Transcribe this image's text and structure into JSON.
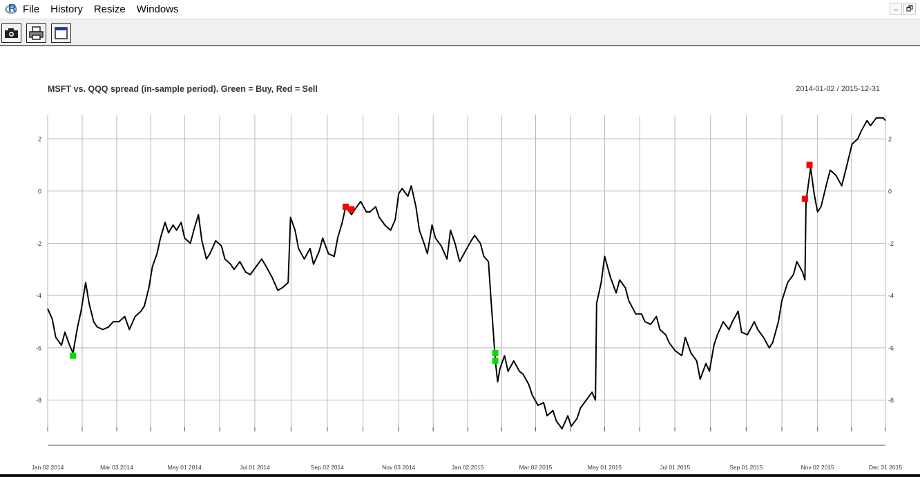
{
  "menubar": {
    "items": [
      "File",
      "History",
      "Resize",
      "Windows"
    ]
  },
  "window_controls": {
    "minimize": "–",
    "restore": "🗗"
  },
  "toolbar": {
    "buttons": [
      "camera-icon",
      "printer-icon",
      "window-icon"
    ]
  },
  "chart_data": {
    "type": "line",
    "title": "MSFT vs. QQQ spread (in-sample period). Green = Buy, Red = Sell",
    "date_range": "2014-01-02 / 2015-12-31",
    "xlabel": "",
    "ylabel": "",
    "x_ticks": [
      "Jan 02 2014",
      "Mar 03 2014",
      "May 01 2014",
      "Jul 01 2014",
      "Sep 02 2014",
      "Nov 03 2014",
      "Jan 02 2015",
      "Mar 02 2015",
      "May 01 2015",
      "Jul 01 2015",
      "Sep 01 2015",
      "Nov 02 2015",
      "Dec 31 2015"
    ],
    "y_ticks": [
      "2",
      "0",
      "-2",
      "-4",
      "-6",
      "-8"
    ],
    "ylim": [
      -9.2,
      2.9
    ],
    "grid": true,
    "series": [
      {
        "values": [
          [
            "2014-01-02",
            -4.5
          ],
          [
            "2014-01-06",
            -4.9
          ],
          [
            "2014-01-09",
            -5.6
          ],
          [
            "2014-01-14",
            -5.9
          ],
          [
            "2014-01-17",
            -5.4
          ],
          [
            "2014-01-21",
            -5.9
          ],
          [
            "2014-01-24",
            -6.2
          ],
          [
            "2014-01-28",
            -5.2
          ],
          [
            "2014-01-31",
            -4.6
          ],
          [
            "2014-02-04",
            -3.5
          ],
          [
            "2014-02-07",
            -4.3
          ],
          [
            "2014-02-11",
            -5.0
          ],
          [
            "2014-02-14",
            -5.2
          ],
          [
            "2014-02-19",
            -5.3
          ],
          [
            "2014-02-24",
            -5.2
          ],
          [
            "2014-02-28",
            -5.0
          ],
          [
            "2014-03-05",
            -5.0
          ],
          [
            "2014-03-10",
            -4.8
          ],
          [
            "2014-03-14",
            -5.3
          ],
          [
            "2014-03-19",
            -4.8
          ],
          [
            "2014-03-24",
            -4.6
          ],
          [
            "2014-03-27",
            -4.4
          ],
          [
            "2014-03-31",
            -3.7
          ],
          [
            "2014-04-03",
            -2.9
          ],
          [
            "2014-04-07",
            -2.4
          ],
          [
            "2014-04-10",
            -1.8
          ],
          [
            "2014-04-14",
            -1.2
          ],
          [
            "2014-04-17",
            -1.6
          ],
          [
            "2014-04-21",
            -1.3
          ],
          [
            "2014-04-24",
            -1.5
          ],
          [
            "2014-04-28",
            -1.2
          ],
          [
            "2014-05-01",
            -1.8
          ],
          [
            "2014-05-06",
            -2.0
          ],
          [
            "2014-05-09",
            -1.5
          ],
          [
            "2014-05-13",
            -0.9
          ],
          [
            "2014-05-16",
            -1.9
          ],
          [
            "2014-05-20",
            -2.6
          ],
          [
            "2014-05-23",
            -2.4
          ],
          [
            "2014-05-28",
            -1.9
          ],
          [
            "2014-06-02",
            -2.1
          ],
          [
            "2014-06-05",
            -2.6
          ],
          [
            "2014-06-10",
            -2.8
          ],
          [
            "2014-06-13",
            -3.0
          ],
          [
            "2014-06-18",
            -2.7
          ],
          [
            "2014-06-23",
            -3.1
          ],
          [
            "2014-06-27",
            -3.2
          ],
          [
            "2014-07-02",
            -2.9
          ],
          [
            "2014-07-07",
            -2.6
          ],
          [
            "2014-07-11",
            -2.9
          ],
          [
            "2014-07-16",
            -3.3
          ],
          [
            "2014-07-21",
            -3.8
          ],
          [
            "2014-07-25",
            -3.7
          ],
          [
            "2014-07-30",
            -3.5
          ],
          [
            "2014-08-01",
            -1.0
          ],
          [
            "2014-08-05",
            -1.5
          ],
          [
            "2014-08-08",
            -2.2
          ],
          [
            "2014-08-13",
            -2.6
          ],
          [
            "2014-08-18",
            -2.2
          ],
          [
            "2014-08-21",
            -2.8
          ],
          [
            "2014-08-26",
            -2.3
          ],
          [
            "2014-08-29",
            -1.8
          ],
          [
            "2014-09-03",
            -2.4
          ],
          [
            "2014-09-08",
            -2.5
          ],
          [
            "2014-09-11",
            -1.8
          ],
          [
            "2014-09-15",
            -1.2
          ],
          [
            "2014-09-18",
            -0.6
          ],
          [
            "2014-09-23",
            -0.9
          ],
          [
            "2014-09-26",
            -0.7
          ],
          [
            "2014-10-01",
            -0.4
          ],
          [
            "2014-10-06",
            -0.8
          ],
          [
            "2014-10-09",
            -0.8
          ],
          [
            "2014-10-14",
            -0.6
          ],
          [
            "2014-10-17",
            -1.0
          ],
          [
            "2014-10-22",
            -1.3
          ],
          [
            "2014-10-27",
            -1.5
          ],
          [
            "2014-10-31",
            -1.1
          ],
          [
            "2014-11-03",
            -0.1
          ],
          [
            "2014-11-06",
            0.1
          ],
          [
            "2014-11-11",
            -0.2
          ],
          [
            "2014-11-14",
            0.2
          ],
          [
            "2014-11-18",
            -0.6
          ],
          [
            "2014-11-21",
            -1.5
          ],
          [
            "2014-11-25",
            -2.0
          ],
          [
            "2014-11-28",
            -2.4
          ],
          [
            "2014-12-02",
            -1.3
          ],
          [
            "2014-12-05",
            -1.8
          ],
          [
            "2014-12-10",
            -2.1
          ],
          [
            "2014-12-15",
            -2.6
          ],
          [
            "2014-12-18",
            -1.5
          ],
          [
            "2014-12-22",
            -2.0
          ],
          [
            "2014-12-26",
            -2.7
          ],
          [
            "2014-12-31",
            -2.3
          ],
          [
            "2015-01-05",
            -1.9
          ],
          [
            "2015-01-08",
            -1.7
          ],
          [
            "2015-01-13",
            -2.0
          ],
          [
            "2015-01-16",
            -2.5
          ],
          [
            "2015-01-20",
            -2.7
          ],
          [
            "2015-01-22",
            -4.0
          ],
          [
            "2015-01-26",
            -6.5
          ],
          [
            "2015-01-28",
            -7.3
          ],
          [
            "2015-01-30",
            -6.8
          ],
          [
            "2015-02-03",
            -6.3
          ],
          [
            "2015-02-06",
            -6.9
          ],
          [
            "2015-02-11",
            -6.5
          ],
          [
            "2015-02-16",
            -6.9
          ],
          [
            "2015-02-19",
            -7.0
          ],
          [
            "2015-02-24",
            -7.4
          ],
          [
            "2015-02-27",
            -7.8
          ],
          [
            "2015-03-04",
            -8.2
          ],
          [
            "2015-03-09",
            -8.1
          ],
          [
            "2015-03-12",
            -8.6
          ],
          [
            "2015-03-17",
            -8.4
          ],
          [
            "2015-03-20",
            -8.8
          ],
          [
            "2015-03-25",
            -9.1
          ],
          [
            "2015-03-30",
            -8.6
          ],
          [
            "2015-04-02",
            -9.0
          ],
          [
            "2015-04-07",
            -8.7
          ],
          [
            "2015-04-10",
            -8.3
          ],
          [
            "2015-04-15",
            -8.0
          ],
          [
            "2015-04-20",
            -7.7
          ],
          [
            "2015-04-23",
            -8.0
          ],
          [
            "2015-04-24",
            -4.3
          ],
          [
            "2015-04-28",
            -3.5
          ],
          [
            "2015-05-01",
            -2.5
          ],
          [
            "2015-05-06",
            -3.3
          ],
          [
            "2015-05-11",
            -3.9
          ],
          [
            "2015-05-14",
            -3.4
          ],
          [
            "2015-05-19",
            -3.7
          ],
          [
            "2015-05-22",
            -4.2
          ],
          [
            "2015-05-28",
            -4.7
          ],
          [
            "2015-06-02",
            -4.7
          ],
          [
            "2015-06-05",
            -5.0
          ],
          [
            "2015-06-10",
            -5.1
          ],
          [
            "2015-06-15",
            -4.8
          ],
          [
            "2015-06-18",
            -5.3
          ],
          [
            "2015-06-23",
            -5.5
          ],
          [
            "2015-06-26",
            -5.8
          ],
          [
            "2015-07-01",
            -6.1
          ],
          [
            "2015-07-07",
            -6.3
          ],
          [
            "2015-07-10",
            -5.6
          ],
          [
            "2015-07-15",
            -6.2
          ],
          [
            "2015-07-20",
            -6.5
          ],
          [
            "2015-07-23",
            -7.2
          ],
          [
            "2015-07-28",
            -6.6
          ],
          [
            "2015-07-31",
            -6.9
          ],
          [
            "2015-08-04",
            -5.9
          ],
          [
            "2015-08-07",
            -5.5
          ],
          [
            "2015-08-12",
            -5.0
          ],
          [
            "2015-08-17",
            -5.3
          ],
          [
            "2015-08-20",
            -5.0
          ],
          [
            "2015-08-25",
            -4.6
          ],
          [
            "2015-08-28",
            -5.4
          ],
          [
            "2015-09-02",
            -5.5
          ],
          [
            "2015-09-08",
            -5.0
          ],
          [
            "2015-09-11",
            -5.3
          ],
          [
            "2015-09-16",
            -5.6
          ],
          [
            "2015-09-21",
            -6.0
          ],
          [
            "2015-09-24",
            -5.8
          ],
          [
            "2015-09-29",
            -5.0
          ],
          [
            "2015-10-02",
            -4.2
          ],
          [
            "2015-10-07",
            -3.5
          ],
          [
            "2015-10-12",
            -3.2
          ],
          [
            "2015-10-15",
            -2.7
          ],
          [
            "2015-10-20",
            -3.1
          ],
          [
            "2015-10-22",
            -3.4
          ],
          [
            "2015-10-23",
            -0.4
          ],
          [
            "2015-10-27",
            0.9
          ],
          [
            "2015-10-30",
            -0.1
          ],
          [
            "2015-11-02",
            -0.8
          ],
          [
            "2015-11-05",
            -0.6
          ],
          [
            "2015-11-10",
            0.3
          ],
          [
            "2015-11-13",
            0.8
          ],
          [
            "2015-11-18",
            0.6
          ],
          [
            "2015-11-23",
            0.2
          ],
          [
            "2015-11-27",
            0.9
          ],
          [
            "2015-12-02",
            1.8
          ],
          [
            "2015-12-07",
            2.0
          ],
          [
            "2015-12-10",
            2.3
          ],
          [
            "2015-12-15",
            2.7
          ],
          [
            "2015-12-18",
            2.5
          ],
          [
            "2015-12-23",
            2.8
          ],
          [
            "2015-12-29",
            2.8
          ],
          [
            "2015-12-31",
            2.7
          ]
        ],
        "color": "#000000"
      }
    ],
    "buy_signals": [
      [
        "2014-01-24",
        -6.3
      ],
      [
        "2015-01-26",
        -6.2
      ],
      [
        "2015-01-26",
        -6.5
      ]
    ],
    "sell_signals": [
      [
        "2014-09-18",
        -0.6
      ],
      [
        "2014-09-23",
        -0.7
      ],
      [
        "2015-10-22",
        -0.3
      ],
      [
        "2015-10-26",
        1.0
      ]
    ],
    "colors": {
      "buy": "#00e000",
      "sell": "#ff0000",
      "line": "#000000",
      "grid": "#b8b8b8"
    }
  }
}
